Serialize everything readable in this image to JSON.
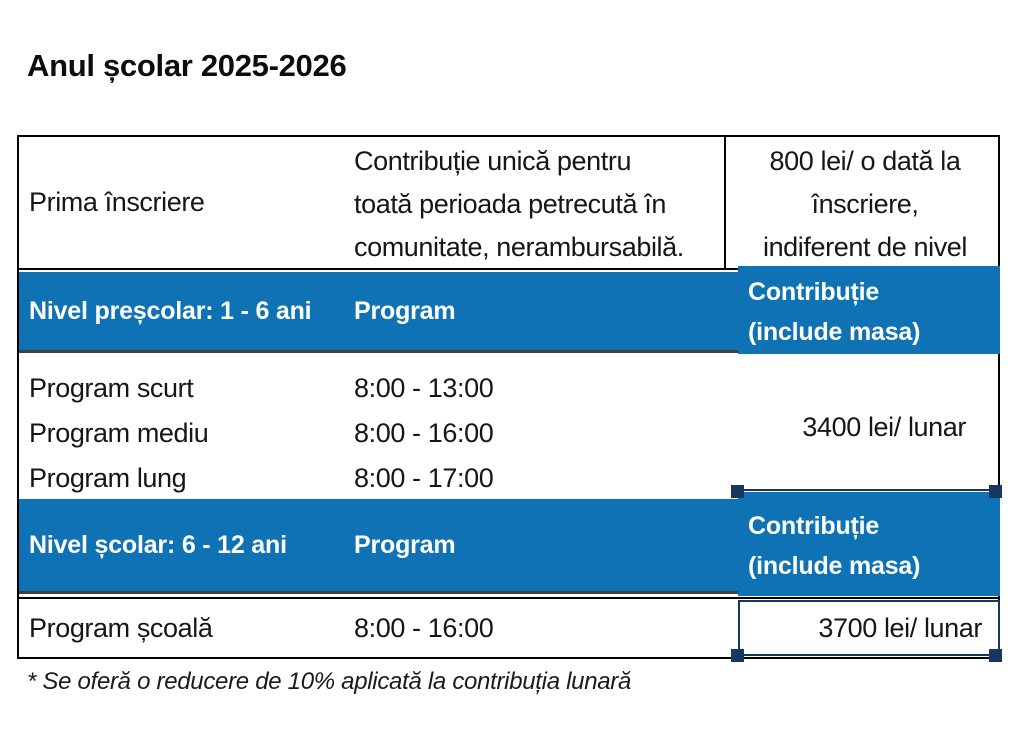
{
  "page": {
    "title": "Anul școlar 2025-2026",
    "footnote": "* Se oferă o reducere de 10% aplicată la contribuția lunară"
  },
  "colors": {
    "accent_blue": "#0e72b5",
    "selection_handle_navy": "#17375e",
    "row_divider_gray": "#404040",
    "table_border_black": "#000000"
  },
  "table": {
    "intro": {
      "label": "Prima înscriere",
      "description_lines": [
        "Contribuție unică pentru",
        "toată perioada petrecută în",
        "comunitate, nerambursabilă."
      ],
      "value_lines": [
        "800 lei/ o dată la",
        "înscriere,",
        "indiferent de nivel"
      ]
    },
    "sections": [
      {
        "header": {
          "level": "Nivel preșcolar: 1 - 6 ani",
          "program_label": "Program",
          "contribution_lines": [
            "Contribuție",
            "(include masa)"
          ]
        },
        "programs": [
          {
            "name": "Program scurt",
            "hours": "8:00 - 13:00"
          },
          {
            "name": "Program mediu",
            "hours": "8:00 - 16:00"
          },
          {
            "name": "Program lung",
            "hours": "8:00 - 17:00"
          }
        ],
        "price": "3400 lei/ lunar"
      },
      {
        "header": {
          "level": "Nivel școlar: 6 - 12 ani",
          "program_label": "Program",
          "contribution_lines": [
            "Contribuție",
            "(include masa)"
          ]
        },
        "programs": [
          {
            "name": "Program școală",
            "hours": "8:00 - 16:00"
          }
        ],
        "price": "3700 lei/ lunar"
      }
    ]
  }
}
